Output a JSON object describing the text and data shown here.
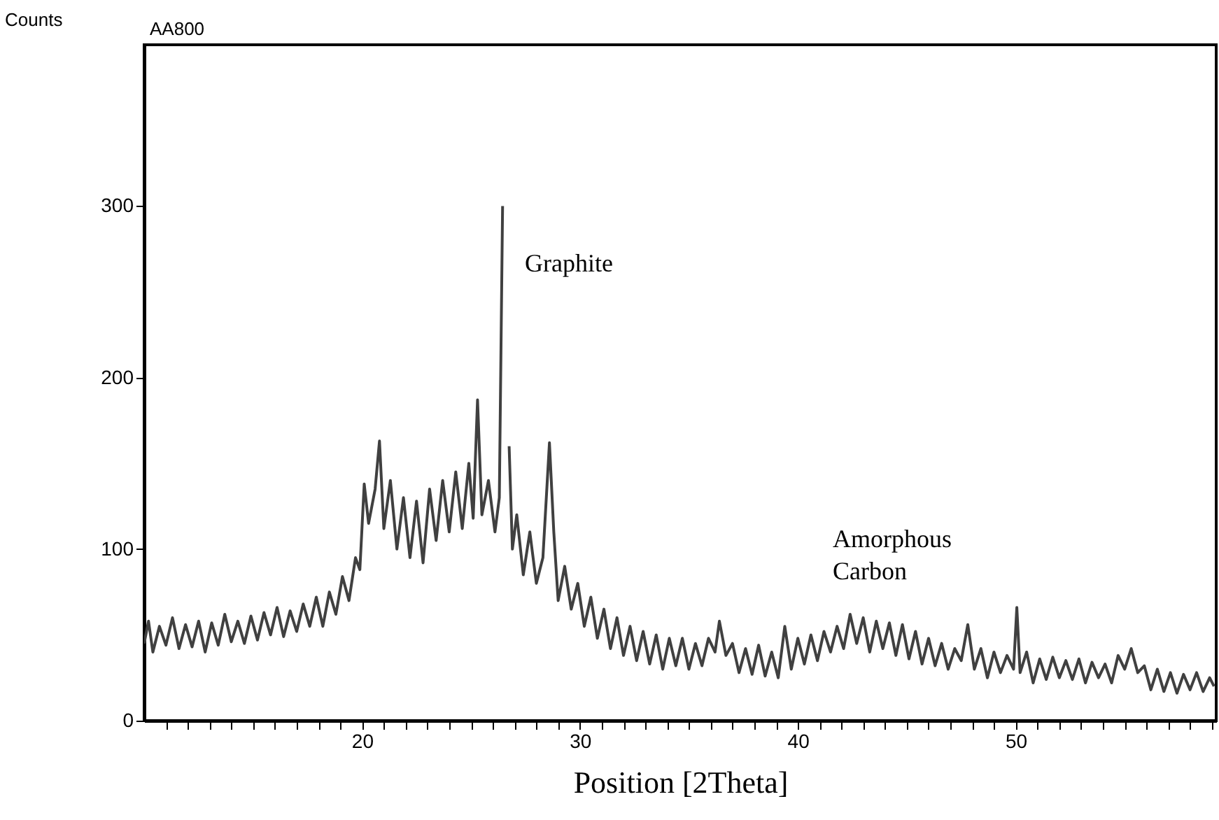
{
  "chart_data": {
    "type": "line",
    "title": "AA800",
    "xlabel": "Position  [2Theta]",
    "ylabel": "Counts",
    "xlim": [
      10,
      59.2
    ],
    "ylim": [
      0,
      394
    ],
    "xticks": [
      {
        "value": 11,
        "label": null
      },
      {
        "value": 12,
        "label": null
      },
      {
        "value": 13,
        "label": null
      },
      {
        "value": 14,
        "label": null
      },
      {
        "value": 15,
        "label": null
      },
      {
        "value": 16,
        "label": null
      },
      {
        "value": 17,
        "label": null
      },
      {
        "value": 18,
        "label": null
      },
      {
        "value": 19,
        "label": null
      },
      20,
      {
        "value": 21,
        "label": null
      },
      {
        "value": 22,
        "label": null
      },
      {
        "value": 23,
        "label": null
      },
      {
        "value": 24,
        "label": null
      },
      {
        "value": 25,
        "label": null
      },
      {
        "value": 26,
        "label": null
      },
      {
        "value": 27,
        "label": null
      },
      {
        "value": 28,
        "label": null
      },
      {
        "value": 29,
        "label": null
      },
      30,
      {
        "value": 31,
        "label": null
      },
      {
        "value": 32,
        "label": null
      },
      {
        "value": 33,
        "label": null
      },
      {
        "value": 34,
        "label": null
      },
      {
        "value": 35,
        "label": null
      },
      {
        "value": 36,
        "label": null
      },
      {
        "value": 37,
        "label": null
      },
      {
        "value": 38,
        "label": null
      },
      {
        "value": 39,
        "label": null
      },
      40,
      {
        "value": 41,
        "label": null
      },
      {
        "value": 42,
        "label": null
      },
      {
        "value": 43,
        "label": null
      },
      {
        "value": 44,
        "label": null
      },
      {
        "value": 45,
        "label": null
      },
      {
        "value": 46,
        "label": null
      },
      {
        "value": 47,
        "label": null
      },
      {
        "value": 48,
        "label": null
      },
      {
        "value": 49,
        "label": null
      },
      50,
      {
        "value": 51,
        "label": null
      },
      {
        "value": 52,
        "label": null
      },
      {
        "value": 53,
        "label": null
      },
      {
        "value": 54,
        "label": null
      },
      {
        "value": 55,
        "label": null
      },
      {
        "value": 56,
        "label": null
      },
      {
        "value": 57,
        "label": null
      },
      {
        "value": 58,
        "label": null
      },
      {
        "value": 59,
        "label": null
      }
    ],
    "yticks": [
      0,
      100,
      200,
      300
    ],
    "annotations": [
      "Graphite",
      "Amorphous\nCarbon"
    ],
    "x": [
      10.0,
      10.2,
      10.4,
      10.7,
      11.0,
      11.3,
      11.6,
      11.9,
      12.2,
      12.5,
      12.8,
      13.1,
      13.4,
      13.7,
      14.0,
      14.3,
      14.6,
      14.9,
      15.2,
      15.5,
      15.8,
      16.1,
      16.4,
      16.7,
      17.0,
      17.3,
      17.6,
      17.9,
      18.2,
      18.5,
      18.8,
      19.1,
      19.4,
      19.7,
      19.9,
      20.1,
      20.3,
      20.6,
      20.8,
      21.0,
      21.3,
      21.6,
      21.9,
      22.2,
      22.5,
      22.8,
      23.1,
      23.4,
      23.7,
      24.0,
      24.3,
      24.6,
      24.9,
      25.1,
      25.3,
      25.5,
      25.8,
      26.1,
      26.3,
      26.45,
      26.55,
      26.65,
      26.75,
      26.9,
      27.1,
      27.4,
      27.7,
      28.0,
      28.3,
      28.6,
      28.8,
      29.0,
      29.3,
      29.6,
      29.9,
      30.2,
      30.5,
      30.8,
      31.1,
      31.4,
      31.7,
      32.0,
      32.3,
      32.6,
      32.9,
      33.2,
      33.5,
      33.8,
      34.1,
      34.4,
      34.7,
      35.0,
      35.3,
      35.6,
      35.9,
      36.2,
      36.4,
      36.7,
      37.0,
      37.3,
      37.6,
      37.9,
      38.2,
      38.5,
      38.8,
      39.1,
      39.4,
      39.7,
      40.0,
      40.3,
      40.6,
      40.9,
      41.2,
      41.5,
      41.8,
      42.1,
      42.4,
      42.7,
      43.0,
      43.3,
      43.6,
      43.9,
      44.2,
      44.5,
      44.8,
      45.1,
      45.4,
      45.7,
      46.0,
      46.3,
      46.6,
      46.9,
      47.2,
      47.5,
      47.8,
      48.1,
      48.4,
      48.7,
      49.0,
      49.3,
      49.6,
      49.9,
      50.05,
      50.2,
      50.5,
      50.8,
      51.1,
      51.4,
      51.7,
      52.0,
      52.3,
      52.6,
      52.9,
      53.2,
      53.5,
      53.8,
      54.1,
      54.4,
      54.7,
      55.0,
      55.3,
      55.6,
      55.9,
      56.2,
      56.5,
      56.8,
      57.1,
      57.4,
      57.7,
      58.0,
      58.3,
      58.6,
      58.9,
      59.1
    ],
    "series": [
      {
        "color": "#404040",
        "values": [
          45,
          58,
          40,
          55,
          44,
          60,
          42,
          56,
          43,
          58,
          40,
          57,
          44,
          62,
          46,
          58,
          45,
          61,
          47,
          63,
          50,
          66,
          49,
          64,
          52,
          68,
          55,
          72,
          55,
          75,
          62,
          84,
          70,
          95,
          88,
          138,
          115,
          135,
          163,
          112,
          140,
          100,
          130,
          95,
          128,
          92,
          135,
          105,
          140,
          110,
          145,
          112,
          150,
          118,
          187,
          120,
          140,
          110,
          130,
          300,
          null,
          null,
          160,
          100,
          120,
          85,
          110,
          80,
          95,
          162,
          110,
          70,
          90,
          65,
          80,
          55,
          72,
          48,
          65,
          42,
          60,
          38,
          55,
          35,
          52,
          33,
          50,
          30,
          48,
          32,
          48,
          30,
          45,
          32,
          48,
          40,
          58,
          38,
          45,
          28,
          42,
          27,
          44,
          26,
          40,
          25,
          55,
          30,
          48,
          33,
          50,
          35,
          52,
          40,
          55,
          42,
          62,
          45,
          60,
          40,
          58,
          42,
          57,
          38,
          56,
          36,
          52,
          33,
          48,
          32,
          45,
          30,
          42,
          35,
          56,
          30,
          42,
          25,
          40,
          28,
          38,
          30,
          66,
          28,
          40,
          22,
          36,
          24,
          37,
          25,
          35,
          24,
          36,
          22,
          34,
          25,
          33,
          22,
          38,
          30,
          42,
          28,
          32,
          18,
          30,
          17,
          28,
          16,
          27,
          18,
          28,
          17,
          25,
          20
        ]
      }
    ]
  }
}
